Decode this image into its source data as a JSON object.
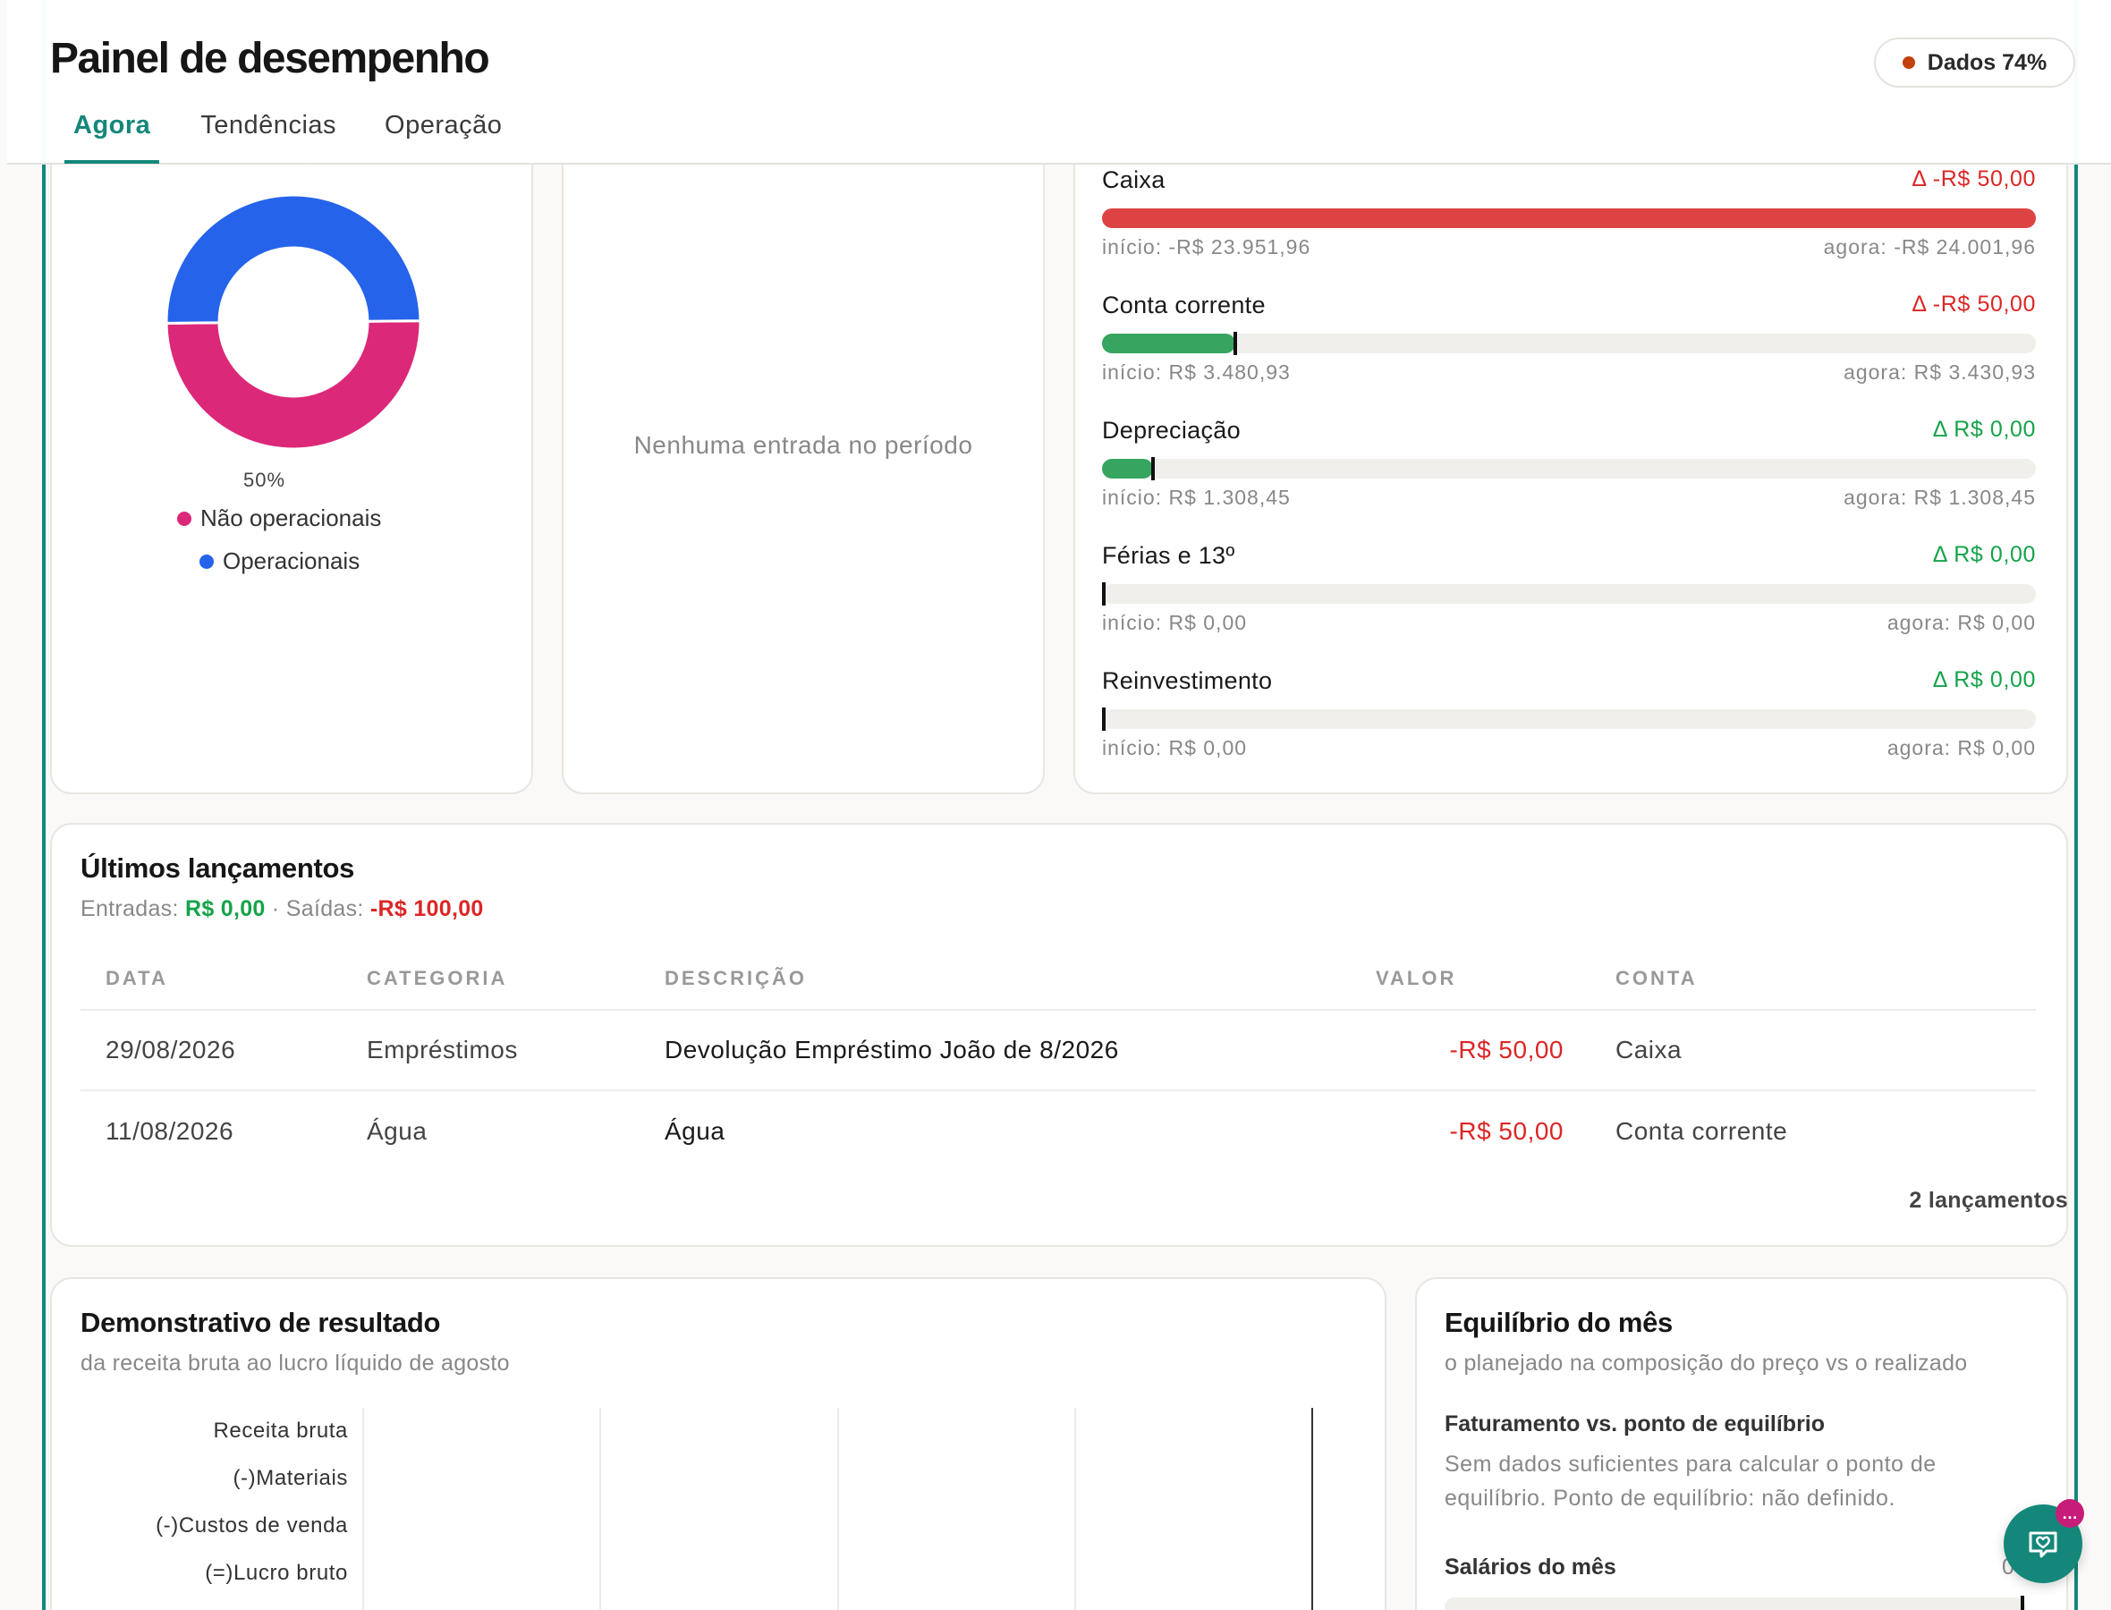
{
  "header": {
    "title": "Painel de desempenho",
    "tabs": [
      {
        "label": "Agora",
        "active": true
      },
      {
        "label": "Tendências",
        "active": false
      },
      {
        "label": "Operação",
        "active": false
      }
    ],
    "data_badge": {
      "label": "Dados 74%",
      "dot_color": "#c2410c"
    }
  },
  "expense_donut": {
    "top_pct_label": "50%",
    "bottom_pct_label": "50%",
    "legend": [
      {
        "label": "Não operacionais",
        "color": "#dc2879"
      },
      {
        "label": "Operacionais",
        "color": "#2563eb"
      }
    ],
    "chart_data": {
      "type": "pie",
      "categories": [
        "Não operacionais",
        "Operacionais"
      ],
      "values": [
        50,
        50
      ],
      "hole": true
    }
  },
  "income_card": {
    "empty_message": "Nenhuma entrada no período"
  },
  "accounts": [
    {
      "name": "Caixa",
      "delta": "Δ -R$ 50,00",
      "delta_color": "#dc2626",
      "start": "início: -R$ 23.951,96",
      "now": "agora: -R$ 24.001,96",
      "fill_fraction": 1.0,
      "fill_color": "#dc4444",
      "marker": false
    },
    {
      "name": "Conta corrente",
      "delta": "Δ -R$ 50,00",
      "delta_color": "#dc2626",
      "start": "início: R$ 3.480,93",
      "now": "agora: R$ 3.430,93",
      "fill_fraction": 0.143,
      "fill_color": "#35a55f",
      "marker": true
    },
    {
      "name": "Depreciação",
      "delta": "Δ R$ 0,00",
      "delta_color": "#16a34a",
      "start": "início: R$ 1.308,45",
      "now": "agora: R$ 1.308,45",
      "fill_fraction": 0.055,
      "fill_color": "#35a55f",
      "marker": true
    },
    {
      "name": "Férias e 13º",
      "delta": "Δ R$ 0,00",
      "delta_color": "#16a34a",
      "start": "início: R$ 0,00",
      "now": "agora: R$ 0,00",
      "fill_fraction": 0,
      "fill_color": "#35a55f",
      "marker": true
    },
    {
      "name": "Reinvestimento",
      "delta": "Δ R$ 0,00",
      "delta_color": "#16a34a",
      "start": "início: R$ 0,00",
      "now": "agora: R$ 0,00",
      "fill_fraction": 0,
      "fill_color": "#35a55f",
      "marker": true
    }
  ],
  "transactions": {
    "title": "Últimos lançamentos",
    "in_label": "Entradas:",
    "in_value": "R$ 0,00",
    "separator": "·",
    "out_label": "Saídas:",
    "out_value": "-R$ 100,00",
    "columns": [
      "DATA",
      "CATEGORIA",
      "DESCRIÇÃO",
      "VALOR",
      "CONTA"
    ],
    "rows": [
      {
        "date": "29/08/2026",
        "category": "Empréstimos",
        "description": "Devolução Empréstimo João de 8/2026",
        "value": "-R$ 50,00",
        "account": "Caixa"
      },
      {
        "date": "11/08/2026",
        "category": "Água",
        "description": "Água",
        "value": "-R$ 50,00",
        "account": "Conta corrente"
      }
    ],
    "count": "2 lançamentos"
  },
  "income_statement": {
    "title": "Demonstrativo de resultado",
    "subtitle": "da receita bruta ao lucro líquido de agosto",
    "rows": [
      "Receita bruta",
      "(-)Materiais",
      "(-)Custos de venda",
      "(=)Lucro bruto"
    ]
  },
  "balance": {
    "title": "Equilíbrio do mês",
    "subtitle": "o planejado na composição do preço vs o realizado",
    "break_even_title": "Faturamento vs. ponto de equilíbrio",
    "break_even_text": "Sem dados suficientes para calcular o ponto de equilíbrio. Ponto de equilíbrio: não definido.",
    "salaries_label": "Salários do mês",
    "salaries_value": "0"
  },
  "chat": {
    "badge": "…"
  },
  "colors": {
    "accent": "#14877a",
    "negative": "#dc2626",
    "positive": "#16a34a"
  }
}
